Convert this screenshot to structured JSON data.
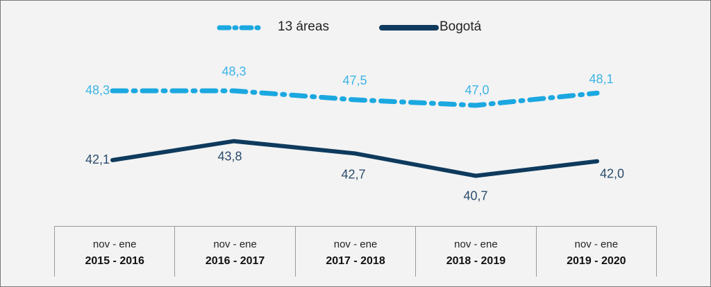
{
  "chart_data": {
    "type": "line",
    "categories": [
      {
        "period": "nov - ene",
        "years": "2015 - 2016"
      },
      {
        "period": "nov - ene",
        "years": "2016 - 2017"
      },
      {
        "period": "nov - ene",
        "years": "2017 - 2018"
      },
      {
        "period": "nov - ene",
        "years": "2018 - 2019"
      },
      {
        "period": "nov - ene",
        "years": "2019 - 2020"
      }
    ],
    "series": [
      {
        "name": "13 áreas",
        "color": "#1ba8e0",
        "style": "dash-dot",
        "values": [
          48.3,
          48.3,
          47.5,
          47.0,
          48.1
        ],
        "labels": [
          "48,3",
          "48,3",
          "47,5",
          "47,0",
          "48,1"
        ]
      },
      {
        "name": "Bogotá",
        "color": "#0e3a5d",
        "style": "solid",
        "values": [
          42.1,
          43.8,
          42.7,
          40.7,
          42.0
        ],
        "labels": [
          "42,1",
          "43,8",
          "42,7",
          "40,7",
          "42,0"
        ]
      }
    ],
    "legend_position": "top-center",
    "grid": false
  }
}
